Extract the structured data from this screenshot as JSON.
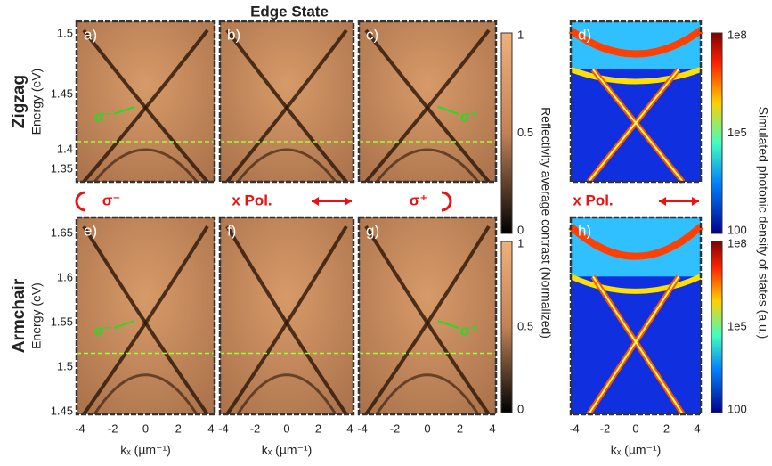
{
  "title": "Edge State",
  "rows": [
    {
      "name": "Zigzag",
      "y_label": "Energy (eV)",
      "yticks": [
        "1.5",
        "1.45",
        "1.4",
        "1.35"
      ],
      "panels": [
        {
          "label": "a)",
          "annotation": "σ⁻"
        },
        {
          "label": "b)"
        },
        {
          "label": "c)",
          "annotation": "σ⁺"
        },
        {
          "label": "d)"
        }
      ]
    },
    {
      "name": "Armchair",
      "y_label": "Energy (eV)",
      "yticks": [
        "1.65",
        "1.6",
        "1.55",
        "1.5",
        "1.45"
      ],
      "panels": [
        {
          "label": "e)",
          "annotation": "σ⁻"
        },
        {
          "label": "f)"
        },
        {
          "label": "g)",
          "annotation": "σ⁺"
        },
        {
          "label": "h)"
        }
      ]
    }
  ],
  "polarizations": [
    "σ⁻",
    "x Pol.",
    "σ⁺",
    "x Pol."
  ],
  "x_axis": {
    "label": "kₓ (µm⁻¹)",
    "ticks": [
      "-4",
      "-2",
      "0",
      "2",
      "4"
    ]
  },
  "reflectivity_colorbar": {
    "label": "Reflectivity average contrast (Normalized)",
    "ticks": [
      "1",
      "0.5",
      "0"
    ]
  },
  "simulation_colorbar": {
    "label": "Simulated photonic density of states (a.u.)",
    "ticks": [
      "1e8",
      "1e5",
      "100"
    ]
  }
}
